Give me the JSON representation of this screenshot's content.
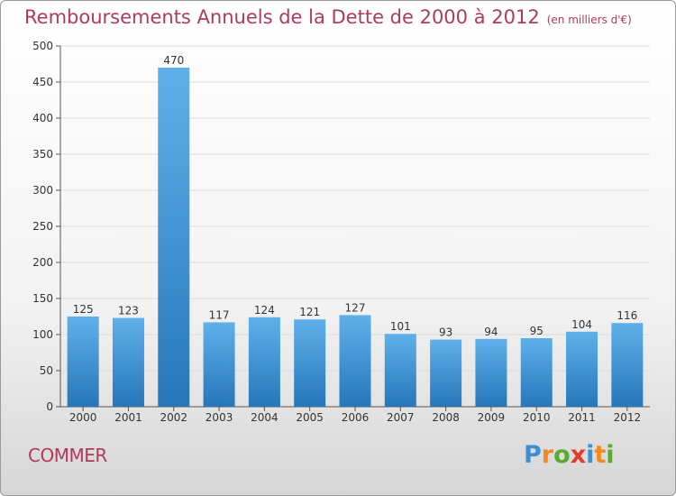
{
  "chart_data": {
    "type": "bar",
    "title": "Remboursements Annuels de la Dette de 2000 à 2012",
    "unit_label": "(en milliers d'€)",
    "categories": [
      "2000",
      "2001",
      "2002",
      "2003",
      "2004",
      "2005",
      "2006",
      "2007",
      "2008",
      "2009",
      "2010",
      "2011",
      "2012"
    ],
    "values": [
      125,
      123,
      470,
      117,
      124,
      121,
      127,
      101,
      93,
      94,
      95,
      104,
      116
    ],
    "ylim": [
      0,
      500
    ],
    "yticks": [
      0,
      50,
      100,
      150,
      200,
      250,
      300,
      350,
      400,
      450,
      500
    ],
    "grid": true,
    "bar_color": "#3a8fd6",
    "text_color": "#b03a5b"
  },
  "commune": "COMMER",
  "logo": {
    "letters": [
      {
        "ch": "P",
        "color": "#3d8fd1"
      },
      {
        "ch": "r",
        "color": "#f08a1c"
      },
      {
        "ch": "o",
        "color": "#5aaa32"
      },
      {
        "ch": "x",
        "color": "#e03b2b"
      },
      {
        "ch": "i",
        "color": "#3d8fd1"
      },
      {
        "ch": "t",
        "color": "#f08a1c"
      },
      {
        "ch": "i",
        "color": "#5aaa32"
      }
    ]
  }
}
